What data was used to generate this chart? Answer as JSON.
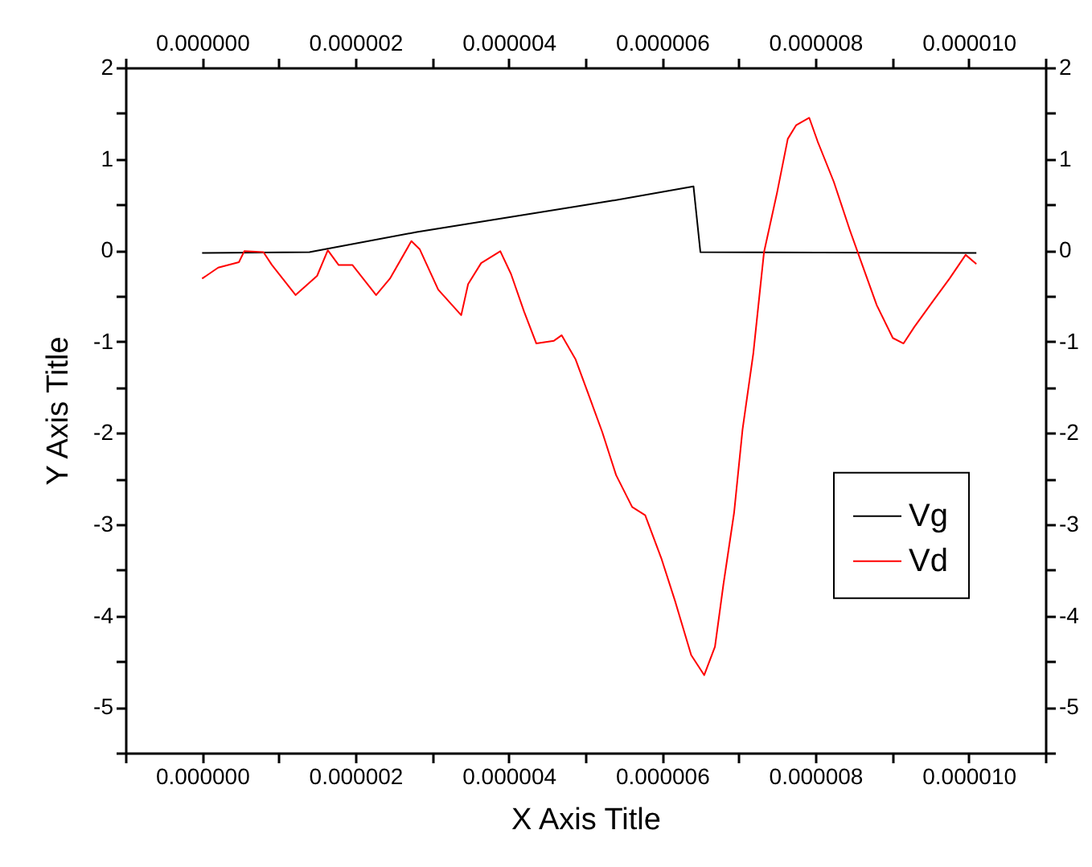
{
  "chart_data": {
    "type": "line",
    "xlabel": "X Axis Title",
    "ylabel": "Y Axis Title",
    "xlim": [
      -1e-06,
      1.1e-05
    ],
    "xticks": [
      {
        "value": -1e-06,
        "label": null
      },
      {
        "value": 0,
        "label": "0.000000"
      },
      {
        "value": 1e-06,
        "label": null
      },
      {
        "value": 2e-06,
        "label": "0.000002"
      },
      {
        "value": 3e-06,
        "label": null
      },
      {
        "value": 4e-06,
        "label": "0.000004"
      },
      {
        "value": 5e-06,
        "label": null
      },
      {
        "value": 6e-06,
        "label": "0.000006"
      },
      {
        "value": 7e-06,
        "label": null
      },
      {
        "value": 8e-06,
        "label": "0.000008"
      },
      {
        "value": 9e-06,
        "label": null
      },
      {
        "value": 1e-05,
        "label": "0.000010"
      },
      {
        "value": 1.1e-05,
        "label": null
      }
    ],
    "x2lim": [
      -1e-06,
      1.1e-05
    ],
    "x2ticks": [
      {
        "value": -1e-06,
        "label": null
      },
      {
        "value": 0,
        "label": "0.000000"
      },
      {
        "value": 1e-06,
        "label": null
      },
      {
        "value": 2e-06,
        "label": "0.000002"
      },
      {
        "value": 3e-06,
        "label": null
      },
      {
        "value": 4e-06,
        "label": "0.000004"
      },
      {
        "value": 5e-06,
        "label": null
      },
      {
        "value": 6e-06,
        "label": "0.000006"
      },
      {
        "value": 7e-06,
        "label": null
      },
      {
        "value": 8e-06,
        "label": "0.000008"
      },
      {
        "value": 9e-06,
        "label": null
      },
      {
        "value": 1e-05,
        "label": "0.000010"
      },
      {
        "value": 1.1e-05,
        "label": null
      }
    ],
    "ylim": [
      -5.5,
      2
    ],
    "yticks": [
      {
        "value": -5.5,
        "label": null
      },
      -5,
      {
        "value": -4.5,
        "label": null
      },
      -4,
      {
        "value": -3.5,
        "label": null
      },
      -3,
      {
        "value": -2.5,
        "label": null
      },
      -2,
      {
        "value": -1.5,
        "label": null
      },
      -1,
      {
        "value": -0.5,
        "label": null
      },
      0,
      {
        "value": 0.5,
        "label": null
      },
      1,
      {
        "value": 1.5,
        "label": null
      },
      2
    ],
    "y2lim": [
      -5.5,
      2
    ],
    "y2ticks": [
      {
        "value": -5.5,
        "label": null
      },
      -5,
      {
        "value": -4.5,
        "label": null
      },
      -4,
      {
        "value": -3.5,
        "label": null
      },
      -3,
      {
        "value": -2.5,
        "label": null
      },
      -2,
      {
        "value": -1.5,
        "label": null
      },
      -1,
      {
        "value": -0.5,
        "label": null
      },
      0,
      {
        "value": 0.5,
        "label": null
      },
      1,
      {
        "value": 1.5,
        "label": null
      },
      2
    ],
    "grid": false,
    "legend": "right",
    "marker": "none",
    "line_style": "solid",
    "series": [
      {
        "name": "Vg",
        "color": "#000000",
        "x": [
          0,
          1.4e-06,
          2.8e-06,
          5.33e-06,
          6.41e-06,
          6.5e-06,
          1.01e-05
        ],
        "values": [
          -0.03,
          -0.02,
          0.2,
          0.54,
          0.7,
          -0.02,
          -0.03
        ]
      },
      {
        "name": "Vd",
        "color": "#ff0000",
        "x": [
          0,
          2.1e-07,
          4.8e-07,
          5.5e-07,
          8e-07,
          9.1e-07,
          1.22e-06,
          1.5e-06,
          1.64e-06,
          1.78e-06,
          1.96e-06,
          2.27e-06,
          2.45e-06,
          2.73e-06,
          2.84e-06,
          3.08e-06,
          3.38e-06,
          3.47e-06,
          3.64e-06,
          3.89e-06,
          4.03e-06,
          4.2e-06,
          4.36e-06,
          4.59e-06,
          4.69e-06,
          4.87e-06,
          5.05e-06,
          5.22e-06,
          5.4e-06,
          5.61e-06,
          5.78e-06,
          5.99e-06,
          6.17e-06,
          6.38e-06,
          6.55e-06,
          6.69e-06,
          6.8e-06,
          6.94e-06,
          7.05e-06,
          7.19e-06,
          7.33e-06,
          7.5e-06,
          7.64e-06,
          7.75e-06,
          7.92e-06,
          8.03e-06,
          8.24e-06,
          8.45e-06,
          8.59e-06,
          8.8e-06,
          9.01e-06,
          9.15e-06,
          9.29e-06,
          9.54e-06,
          9.75e-06,
          9.96e-06,
          1.01e-05
        ],
        "values": [
          -0.31,
          -0.19,
          -0.13,
          -0.01,
          -0.02,
          -0.16,
          -0.49,
          -0.28,
          0.0,
          -0.16,
          -0.16,
          -0.49,
          -0.31,
          0.1,
          0.01,
          -0.43,
          -0.71,
          -0.37,
          -0.14,
          -0.01,
          -0.26,
          -0.67,
          -1.02,
          -0.99,
          -0.93,
          -1.19,
          -1.6,
          -1.99,
          -2.46,
          -2.81,
          -2.9,
          -3.37,
          -3.84,
          -4.43,
          -4.65,
          -4.34,
          -3.66,
          -2.87,
          -1.96,
          -1.13,
          -0.02,
          0.63,
          1.22,
          1.37,
          1.45,
          1.19,
          0.75,
          0.22,
          -0.11,
          -0.6,
          -0.96,
          -1.02,
          -0.84,
          -0.55,
          -0.31,
          -0.05,
          -0.15
        ]
      }
    ]
  }
}
